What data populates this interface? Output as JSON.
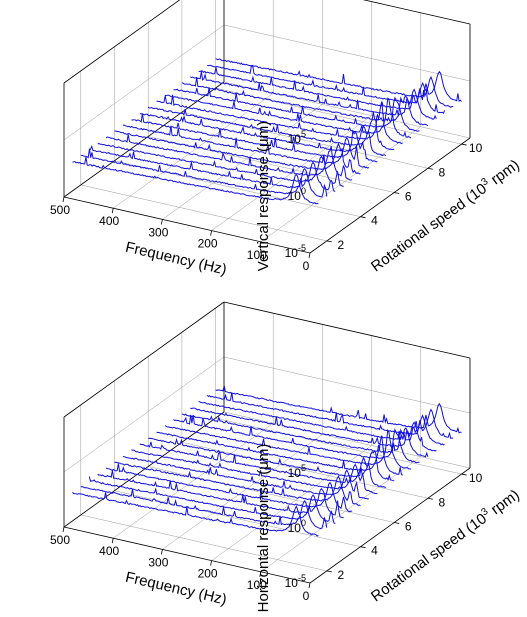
{
  "chart_data": [
    {
      "type": "waterfall-3d",
      "title": "",
      "xlabel": "Frequency (Hz)",
      "ylabel": "Rotational speed (10^3 rpm)",
      "ylabel_main": "Rotational speed (10",
      "ylabel_exp": "3",
      "ylabel_tail": " rpm)",
      "zlabel": "Vertical response (μm)",
      "zlabel_main": "Vertical response (",
      "zlabel_unit": "μm)",
      "xlim": [
        0,
        500
      ],
      "ylim": [
        1,
        10.5
      ],
      "zlim": [
        -5,
        5
      ],
      "z_scale": "log",
      "x_ticks": [
        "0",
        "100",
        "200",
        "300",
        "400",
        "500"
      ],
      "y_ticks": [
        "2",
        "4",
        "6",
        "8",
        "10"
      ],
      "z_ticks": [
        {
          "base": "10",
          "exp": "-5"
        },
        {
          "base": "10",
          "exp": "0"
        },
        {
          "base": "10",
          "exp": "5"
        }
      ],
      "grid": true,
      "speeds": [
        1.5,
        2.0,
        2.5,
        3.0,
        3.5,
        4.0,
        4.5,
        5.0,
        5.5,
        6.0,
        6.5,
        7.0,
        7.5,
        8.0,
        8.5,
        9.0,
        9.5,
        10.0
      ],
      "peak_frequency_hz": 45,
      "peak_log_response": 2.6,
      "baseline_log_response": -2.0
    },
    {
      "type": "waterfall-3d",
      "title": "",
      "xlabel": "Frequency (Hz)",
      "ylabel": "Rotational speed (10^3 rpm)",
      "ylabel_main": "Rotational speed (10",
      "ylabel_exp": "3",
      "ylabel_tail": " rpm)",
      "zlabel": "Horizontal response (μm)",
      "zlabel_main": "Horizontal response (",
      "zlabel_unit": "μm)",
      "xlim": [
        0,
        500
      ],
      "ylim": [
        1,
        10.5
      ],
      "zlim": [
        -5,
        5
      ],
      "z_scale": "log",
      "x_ticks": [
        "0",
        "100",
        "200",
        "300",
        "400",
        "500"
      ],
      "y_ticks": [
        "2",
        "4",
        "6",
        "8",
        "10"
      ],
      "z_ticks": [
        {
          "base": "10",
          "exp": "-5"
        },
        {
          "base": "10",
          "exp": "0"
        },
        {
          "base": "10",
          "exp": "5"
        }
      ],
      "grid": true,
      "speeds": [
        1.5,
        2.0,
        2.5,
        3.0,
        3.5,
        4.0,
        4.5,
        5.0,
        5.5,
        6.0,
        6.5,
        7.0,
        7.5,
        8.0,
        8.5,
        9.0,
        9.5,
        10.0
      ],
      "peak_frequency_hz": 45,
      "peak_log_response": 2.6,
      "baseline_log_response": -2.0
    }
  ]
}
